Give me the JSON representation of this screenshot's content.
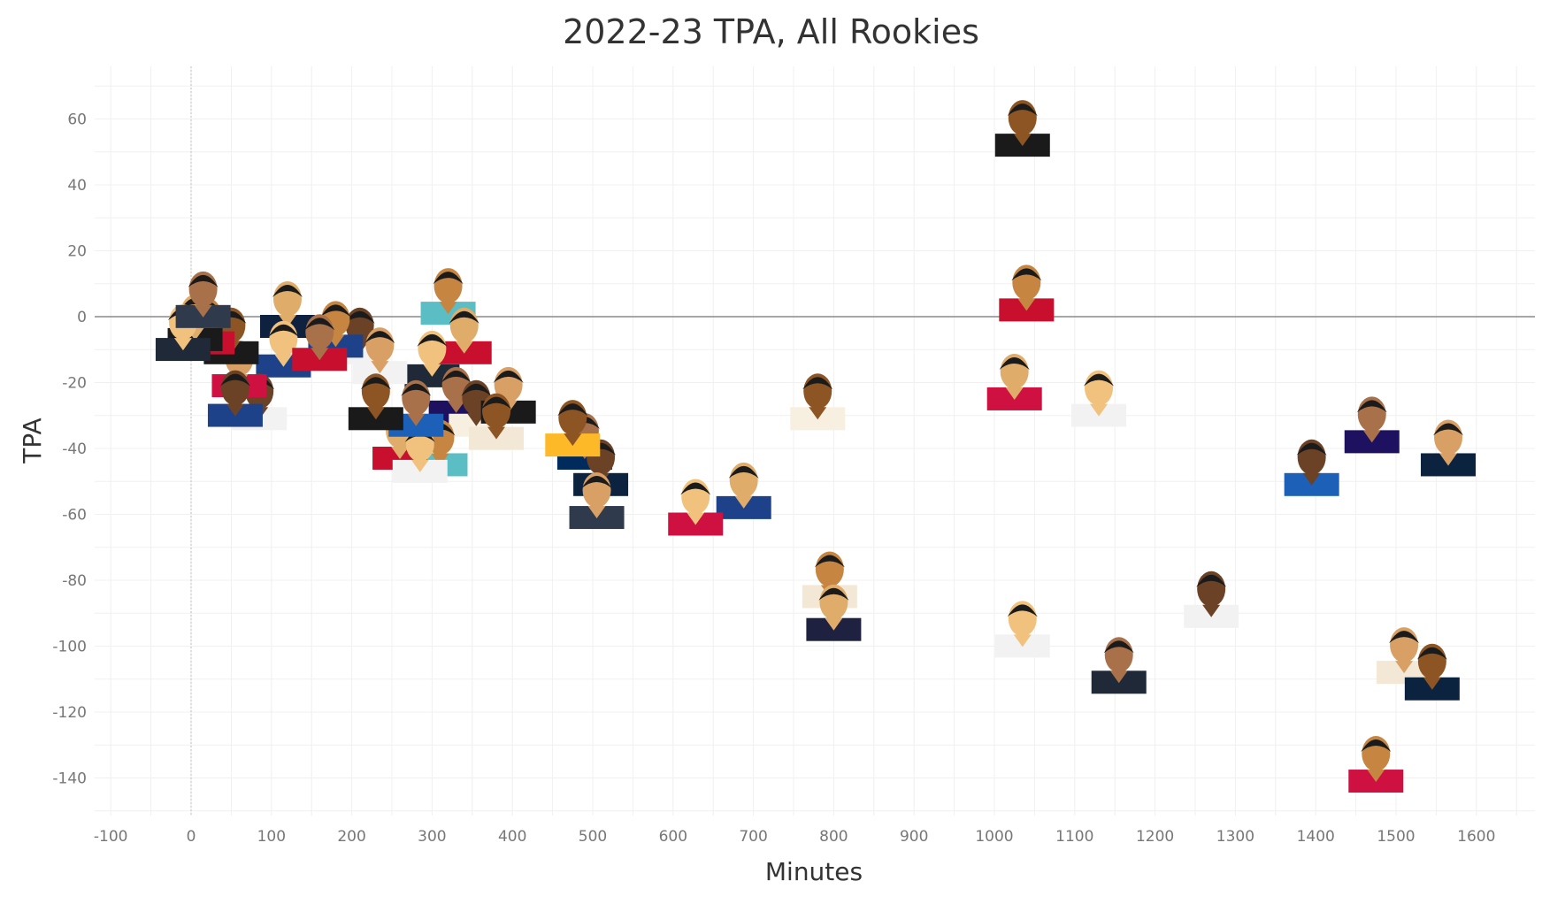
{
  "chart_data": {
    "type": "scatter",
    "title": "2022-23 TPA, All Rookies",
    "xlabel": "Minutes",
    "ylabel": "TPA",
    "xlim": [
      -100,
      1650
    ],
    "ylim": [
      -150,
      70
    ],
    "x_ticks": [
      -100,
      0,
      100,
      200,
      300,
      400,
      500,
      600,
      700,
      800,
      900,
      1000,
      1100,
      1200,
      1300,
      1400,
      1500,
      1600
    ],
    "y_ticks": [
      60,
      40,
      20,
      0,
      -20,
      -40,
      -60,
      -80,
      -100,
      -120,
      -140
    ],
    "grid": true,
    "marker": "player-headshot",
    "points": [
      {
        "x": 1035,
        "y": 55,
        "jersey": "#1a1a1a"
      },
      {
        "x": 1040,
        "y": 5,
        "jersey": "#c8102e"
      },
      {
        "x": 1025,
        "y": -22,
        "jersey": "#ce1141"
      },
      {
        "x": 1130,
        "y": -27,
        "jersey": "#f2f2f2"
      },
      {
        "x": 1470,
        "y": -35,
        "jersey": "#1d1160"
      },
      {
        "x": 1395,
        "y": -48,
        "jersey": "#1d60b8"
      },
      {
        "x": 1565,
        "y": -42,
        "jersey": "#0c2340"
      },
      {
        "x": 780,
        "y": -28,
        "jersey": "#f7efe0"
      },
      {
        "x": 795,
        "y": -82,
        "jersey": "#f2e8d5"
      },
      {
        "x": 800,
        "y": -92,
        "jersey": "#1f2140"
      },
      {
        "x": 1035,
        "y": -97,
        "jersey": "#f2f2f2"
      },
      {
        "x": 1155,
        "y": -108,
        "jersey": "#1f2937"
      },
      {
        "x": 1270,
        "y": -88,
        "jersey": "#f2f2f2"
      },
      {
        "x": 1510,
        "y": -105,
        "jersey": "#f2e8d5"
      },
      {
        "x": 1545,
        "y": -110,
        "jersey": "#0c2340"
      },
      {
        "x": 1475,
        "y": -138,
        "jersey": "#ce1141"
      },
      {
        "x": 688,
        "y": -55,
        "jersey": "#1d428a"
      },
      {
        "x": 628,
        "y": -60,
        "jersey": "#ce1141"
      },
      {
        "x": 490,
        "y": -40,
        "jersey": "#002b5c"
      },
      {
        "x": 510,
        "y": -48,
        "jersey": "#0c2340"
      },
      {
        "x": 505,
        "y": -58,
        "jersey": "#2f3b4d"
      },
      {
        "x": 475,
        "y": -36,
        "jersey": "#fdb927"
      },
      {
        "x": 320,
        "y": 4,
        "jersey": "#5bbec4"
      },
      {
        "x": 340,
        "y": -8,
        "jersey": "#c8102e"
      },
      {
        "x": 300,
        "y": -15,
        "jersey": "#1f2937"
      },
      {
        "x": 330,
        "y": -26,
        "jersey": "#1d1160"
      },
      {
        "x": 355,
        "y": -30,
        "jersey": "#f7efe0"
      },
      {
        "x": 395,
        "y": -26,
        "jersey": "#1a1a1a"
      },
      {
        "x": 380,
        "y": -34,
        "jersey": "#f2e8d5"
      },
      {
        "x": 310,
        "y": -42,
        "jersey": "#5bbec4"
      },
      {
        "x": 260,
        "y": -40,
        "jersey": "#c8102e"
      },
      {
        "x": 285,
        "y": -44,
        "jersey": "#f2f2f2"
      },
      {
        "x": 280,
        "y": -30,
        "jersey": "#1d60b8"
      },
      {
        "x": 210,
        "y": -8,
        "jersey": "#f2f2f2"
      },
      {
        "x": 235,
        "y": -14,
        "jersey": "#f2f2f2"
      },
      {
        "x": 230,
        "y": -28,
        "jersey": "#1a1a1a"
      },
      {
        "x": 180,
        "y": -6,
        "jersey": "#1d428a"
      },
      {
        "x": 120,
        "y": 0,
        "jersey": "#0e2240"
      },
      {
        "x": 115,
        "y": -12,
        "jersey": "#1d428a"
      },
      {
        "x": 160,
        "y": -10,
        "jersey": "#c8102e"
      },
      {
        "x": 85,
        "y": -28,
        "jersey": "#f2f2f2"
      },
      {
        "x": 60,
        "y": -18,
        "jersey": "#ce1141"
      },
      {
        "x": 50,
        "y": -8,
        "jersey": "#1a1a1a"
      },
      {
        "x": 20,
        "y": -5,
        "jersey": "#c8102e"
      },
      {
        "x": 5,
        "y": -4,
        "jersey": "#1a1a1a"
      },
      {
        "x": -10,
        "y": -7,
        "jersey": "#1f2937"
      },
      {
        "x": 15,
        "y": 3,
        "jersey": "#2f3b4d"
      },
      {
        "x": 55,
        "y": -27,
        "jersey": "#1d428a"
      }
    ]
  }
}
